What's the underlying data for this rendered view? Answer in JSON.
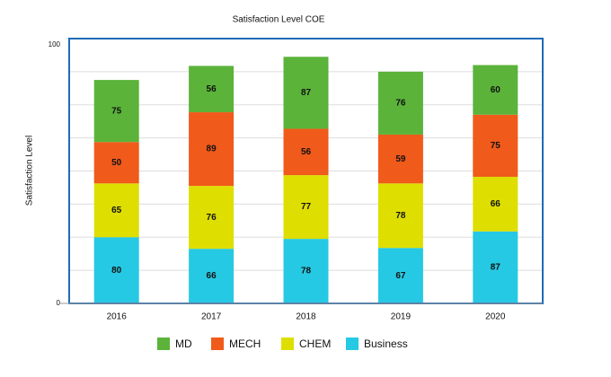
{
  "chart_data": {
    "type": "stacked-bar",
    "title": "Satisfaction Level COE",
    "y_label": "Satisfaction Level",
    "categories": [
      "2016",
      "2017",
      "2018",
      "2019",
      "2020"
    ],
    "series": [
      {
        "name": "Business",
        "color": "#26c9e3",
        "values": [
          80,
          66,
          78,
          67,
          87
        ]
      },
      {
        "name": "CHEM",
        "color": "#dede00",
        "values": [
          65,
          76,
          77,
          78,
          66
        ]
      },
      {
        "name": "MECH",
        "color": "#f05a1a",
        "values": [
          50,
          89,
          56,
          59,
          75
        ]
      },
      {
        "name": "MD",
        "color": "#5bb33a",
        "values": [
          75,
          56,
          87,
          76,
          60
        ]
      }
    ],
    "ylim": [
      0,
      320
    ],
    "yticks": [
      0,
      {
        "value": 320,
        "label": "100"
      }
    ],
    "grid": true,
    "legend": "bottom"
  }
}
